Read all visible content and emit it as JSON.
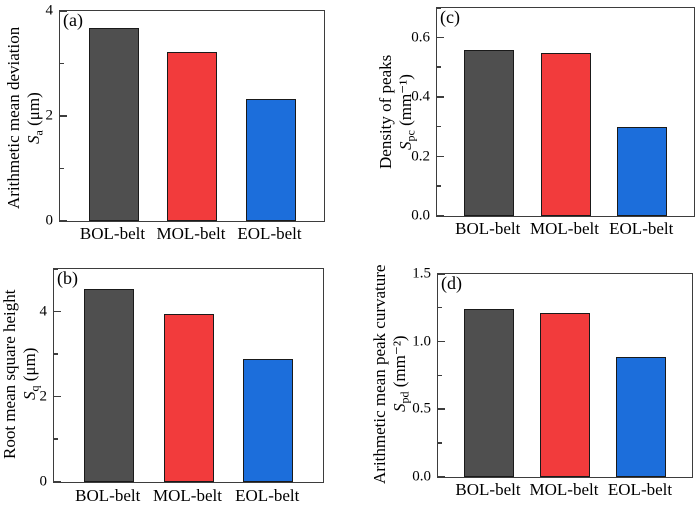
{
  "figure": {
    "background": "#ffffff",
    "frame_color": "#3d3d3d",
    "bar_colors": [
      "#4f4f4f",
      "#f23b3c",
      "#1c6edb"
    ],
    "series_names": [
      "BOL-belt",
      "MOL-belt",
      "EOL-belt"
    ]
  },
  "chart_data": [
    {
      "type": "bar",
      "panel": "(a)",
      "ylabel_line1": "Arithmetic mean deviation",
      "symbol": "S",
      "symbol_sub": "a",
      "unit": " (μm)",
      "categories": [
        "BOL-belt",
        "MOL-belt",
        "EOL-belt"
      ],
      "values": [
        3.67,
        3.21,
        2.33
      ],
      "bar_colors": [
        "#4f4f4f",
        "#f23b3c",
        "#1c6edb"
      ],
      "ylim": [
        0,
        4
      ],
      "yticks": [
        {
          "v": 0,
          "label": "0"
        },
        {
          "v": 2,
          "label": "2"
        },
        {
          "v": 4,
          "label": "4"
        }
      ],
      "minor_ticks": [
        1,
        3
      ],
      "legend": "none",
      "grid": false
    },
    {
      "type": "bar",
      "panel": "(b)",
      "ylabel_line1": "Root mean square height",
      "symbol": "S",
      "symbol_sub": "q",
      "unit": " (μm)",
      "categories": [
        "BOL-belt",
        "MOL-belt",
        "EOL-belt"
      ],
      "values": [
        4.53,
        3.95,
        2.89
      ],
      "bar_colors": [
        "#4f4f4f",
        "#f23b3c",
        "#1c6edb"
      ],
      "ylim": [
        0,
        5
      ],
      "yticks": [
        {
          "v": 0,
          "label": "0"
        },
        {
          "v": 2,
          "label": "2"
        },
        {
          "v": 4,
          "label": "4"
        }
      ],
      "minor_ticks": [
        1,
        3,
        5
      ],
      "legend": "none",
      "grid": false
    },
    {
      "type": "bar",
      "panel": "(c)",
      "ylabel_line1": "Density of peaks",
      "symbol": "S",
      "symbol_sub": "pc",
      "unit": " (mm⁻¹)",
      "categories": [
        "BOL-belt",
        "MOL-belt",
        "EOL-belt"
      ],
      "values": [
        0.56,
        0.55,
        0.3
      ],
      "bar_colors": [
        "#4f4f4f",
        "#f23b3c",
        "#1c6edb"
      ],
      "ylim": [
        0,
        0.7
      ],
      "yticks": [
        {
          "v": 0,
          "label": "0.0"
        },
        {
          "v": 0.2,
          "label": "0.2"
        },
        {
          "v": 0.4,
          "label": "0.4"
        },
        {
          "v": 0.6,
          "label": "0.6"
        }
      ],
      "minor_ticks": [
        0.1,
        0.3,
        0.5,
        0.7
      ],
      "legend": "none",
      "grid": false
    },
    {
      "type": "bar",
      "panel": "(d)",
      "ylabel_line1": "Arithmetic mean peak curvature",
      "symbol": "S",
      "symbol_sub": "pd",
      "unit": " (mm⁻²)",
      "categories": [
        "BOL-belt",
        "MOL-belt",
        "EOL-belt"
      ],
      "values": [
        1.24,
        1.21,
        0.89
      ],
      "bar_colors": [
        "#4f4f4f",
        "#f23b3c",
        "#1c6edb"
      ],
      "ylim": [
        0,
        1.5
      ],
      "yticks": [
        {
          "v": 0,
          "label": "0.0"
        },
        {
          "v": 0.5,
          "label": "0.5"
        },
        {
          "v": 1.0,
          "label": "1.0"
        },
        {
          "v": 1.5,
          "label": "1.5"
        }
      ],
      "minor_ticks": [
        0.25,
        0.75,
        1.25
      ],
      "legend": "none",
      "grid": false
    }
  ]
}
